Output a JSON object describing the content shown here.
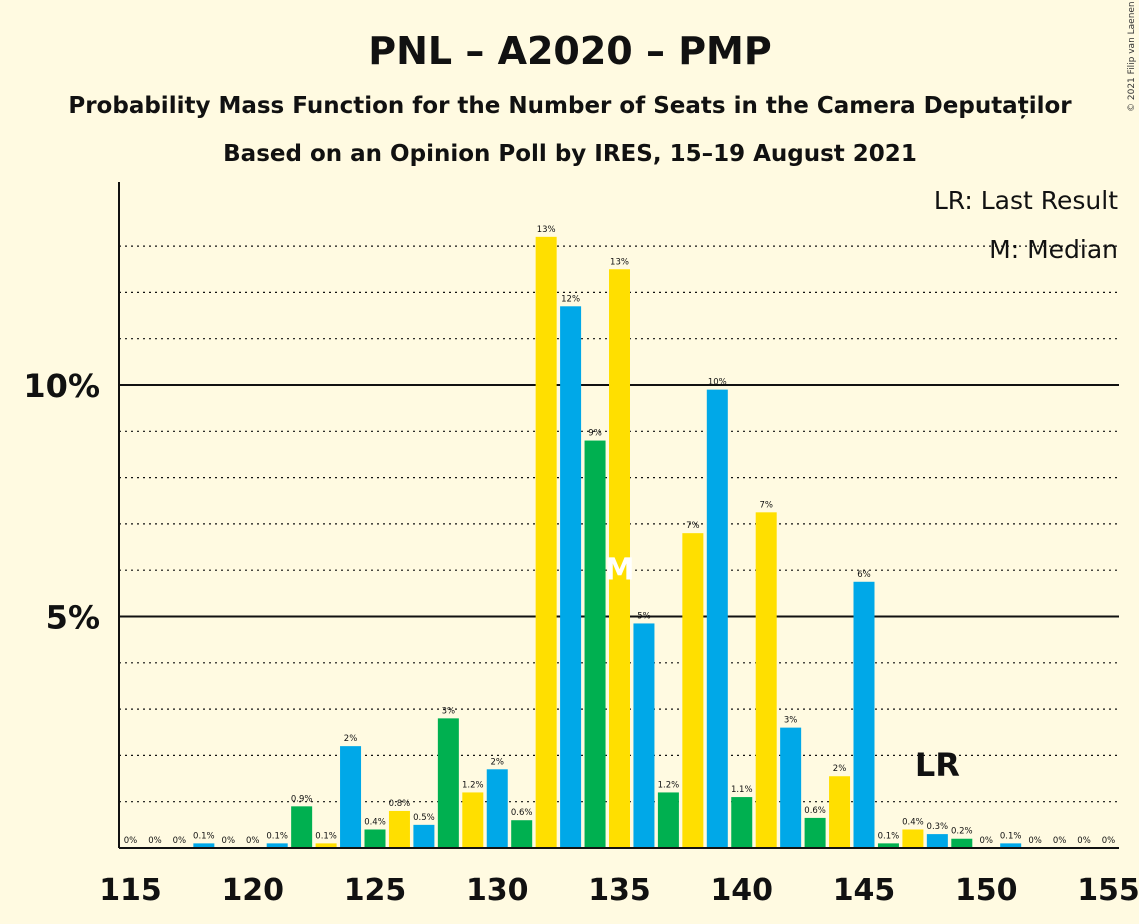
{
  "title": "PNL – A2020 – PMP",
  "subtitle1": "Probability Mass Function for the Number of Seats in the Camera Deputaților",
  "subtitle2": "Based on an Opinion Poll by IRES, 15–19 August 2021",
  "copyright": "© 2021 Filip van Laenen",
  "legend": {
    "lr": "LR: Last Result",
    "median": "M: Median"
  },
  "lr_marker": "LR",
  "median_marker": "M",
  "colors": {
    "blue": "#00A8E8",
    "green": "#00B050",
    "yellow": "#FFDF00",
    "background": "#FFFAE1"
  },
  "chart_data": {
    "type": "bar",
    "x": [
      115,
      116,
      117,
      118,
      119,
      120,
      121,
      122,
      123,
      124,
      125,
      126,
      127,
      128,
      129,
      130,
      131,
      132,
      133,
      134,
      135,
      136,
      137,
      138,
      139,
      140,
      141,
      142,
      143,
      144,
      145,
      146,
      147,
      148,
      149,
      150,
      151,
      152,
      153,
      154,
      155
    ],
    "values": [
      0,
      0,
      0,
      0.1,
      0,
      0,
      0.1,
      0.9,
      0.1,
      2.2,
      0.4,
      0.8,
      0.5,
      2.8,
      1.2,
      1.7,
      0.6,
      13.2,
      11.7,
      8.8,
      12.5,
      4.85,
      1.2,
      6.8,
      9.9,
      1.1,
      7.25,
      2.6,
      0.65,
      1.55,
      5.75,
      0.1,
      0.4,
      0.3,
      0.2,
      0,
      0.1,
      0,
      0,
      0,
      0
    ],
    "labels": [
      "0%",
      "0%",
      "0%",
      "0.1%",
      "0%",
      "0%",
      "0.1%",
      "0.9%",
      "0.1%",
      "2%",
      "0.4%",
      "0.8%",
      "0.5%",
      "3%",
      "1.2%",
      "2%",
      "0.6%",
      "13%",
      "12%",
      "9%",
      "13%",
      "5%",
      "1.2%",
      "7%",
      "10%",
      "1.1%",
      "7%",
      "3%",
      "0.6%",
      "2%",
      "6%",
      "0.1%",
      "0.4%",
      "0.3%",
      "0.2%",
      "0%",
      "0.1%",
      "0%",
      "0%",
      "0%",
      "0%"
    ],
    "colors": [
      "blue",
      "green",
      "yellow",
      "blue",
      "green",
      "yellow",
      "blue",
      "green",
      "yellow",
      "blue",
      "green",
      "yellow",
      "blue",
      "green",
      "yellow",
      "blue",
      "green",
      "yellow",
      "blue",
      "green",
      "yellow",
      "blue",
      "green",
      "yellow",
      "blue",
      "green",
      "yellow",
      "blue",
      "green",
      "yellow",
      "blue",
      "green",
      "yellow",
      "blue",
      "green",
      "yellow",
      "blue",
      "green",
      "yellow",
      "blue",
      "green"
    ],
    "xticks": [
      "115",
      "120",
      "125",
      "130",
      "135",
      "140",
      "145",
      "150",
      "155"
    ],
    "yticks": [
      "5%",
      "10%"
    ],
    "ylim": [
      0,
      14.3
    ],
    "median": 135,
    "last_result": 148,
    "grid": "dotted every 1%, solid at 5% and 10%"
  }
}
